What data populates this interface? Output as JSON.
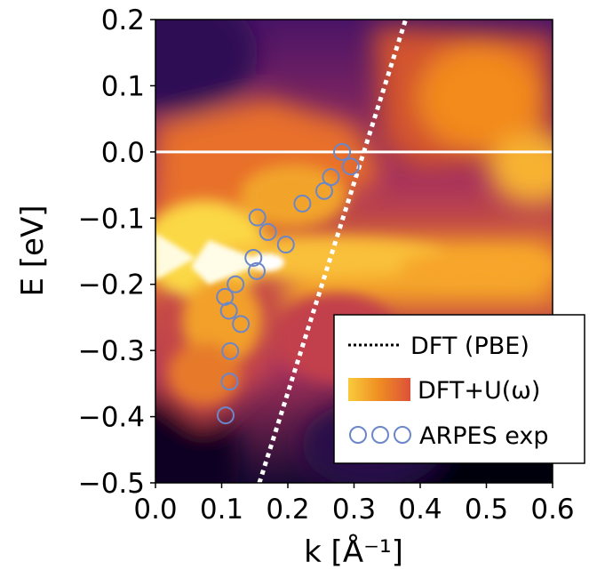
{
  "chart_data": {
    "type": "heatmap",
    "xlabel": "k [Å⁻¹]",
    "ylabel": "E [eV]",
    "xlim": [
      0.0,
      0.6
    ],
    "ylim": [
      -0.5,
      0.2
    ],
    "xticks": [
      "0.0",
      "0.1",
      "0.2",
      "0.3",
      "0.4",
      "0.5",
      "0.6"
    ],
    "yticks": [
      "−0.5",
      "−0.4",
      "−0.3",
      "−0.2",
      "−0.1",
      "0.0",
      "0.1",
      "0.2"
    ],
    "xtick_values": [
      0.0,
      0.1,
      0.2,
      0.3,
      0.4,
      0.5,
      0.6
    ],
    "ytick_values": [
      -0.5,
      -0.4,
      -0.3,
      -0.2,
      -0.1,
      0.0,
      0.1,
      0.2
    ],
    "colormap": "inferno",
    "fermi_level": {
      "y": 0.0,
      "color": "#ffffff"
    },
    "series": [
      {
        "name": "DFT (PBE)",
        "style": "dotted",
        "color": "#ffffff",
        "x": [
          0.157,
          0.378
        ],
        "y": [
          -0.5,
          0.2
        ]
      },
      {
        "name": "DFT+U(ω)",
        "style": "heatmap"
      },
      {
        "name": "ARPES exp",
        "style": "open-circle",
        "color": "#6b86c9",
        "x": [
          0.282,
          0.295,
          0.265,
          0.255,
          0.222,
          0.154,
          0.17,
          0.197,
          0.148,
          0.153,
          0.121,
          0.105,
          0.111,
          0.129,
          0.113,
          0.112,
          0.106
        ],
        "y": [
          0.0,
          -0.022,
          -0.038,
          -0.059,
          -0.078,
          -0.099,
          -0.121,
          -0.14,
          -0.16,
          -0.18,
          -0.2,
          -0.219,
          -0.24,
          -0.26,
          -0.301,
          -0.347,
          -0.398
        ]
      }
    ],
    "legend": {
      "position": "lower-right",
      "entries": [
        "DFT (PBE)",
        "DFT+U(ω)",
        "ARPES exp"
      ]
    },
    "grid": false
  }
}
